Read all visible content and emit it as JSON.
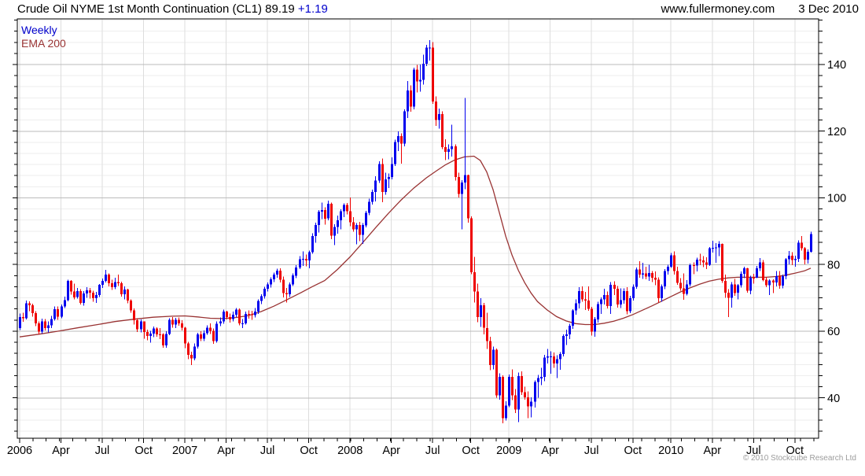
{
  "header": {
    "title": "Crude Oil NYME 1st Month Continuation (CL1) 89.19",
    "change": "+1.19",
    "website": "www.fullermoney.com",
    "date": "3 Dec 2010"
  },
  "legend": {
    "timeframe": "Weekly",
    "overlay": "EMA 200"
  },
  "footer": {
    "copyright": "© 2010 Stockcube Research Ltd"
  },
  "colors": {
    "up": "#0000EE",
    "down": "#EE0000",
    "ema": "#993333",
    "blue_text": "#0000CC",
    "grid_major": "#BBBBBB",
    "grid_minor": "#EEEEEE",
    "grid_vertical": "#DDDDDD",
    "axis": "#000000",
    "watermark": "#9C9C9C"
  },
  "chart_data": {
    "type": "candlestick",
    "title": "Crude Oil NYME 1st Month Continuation (CL1)",
    "last": 89.19,
    "change": 1.19,
    "timeframe": "Weekly",
    "overlay": "EMA 200",
    "grid": true,
    "legend_position": "top-left",
    "ylim": [
      28,
      153
    ],
    "y_major_ticks": [
      40,
      60,
      80,
      100,
      120,
      140
    ],
    "y_minor_step": 3.3333,
    "x_range_weeks": 250,
    "x_ticks": [
      {
        "i": 0,
        "label": "2006"
      },
      {
        "i": 13,
        "label": "Apr"
      },
      {
        "i": 26,
        "label": "Jul"
      },
      {
        "i": 39,
        "label": "Oct"
      },
      {
        "i": 52,
        "label": "2007"
      },
      {
        "i": 65,
        "label": "Apr"
      },
      {
        "i": 78,
        "label": "Jul"
      },
      {
        "i": 91,
        "label": "Oct"
      },
      {
        "i": 104,
        "label": "2008"
      },
      {
        "i": 117,
        "label": "Apr"
      },
      {
        "i": 130,
        "label": "Jul"
      },
      {
        "i": 142,
        "label": "Oct"
      },
      {
        "i": 154,
        "label": "2009"
      },
      {
        "i": 167,
        "label": "Apr"
      },
      {
        "i": 180,
        "label": "Jul"
      },
      {
        "i": 193,
        "label": "Oct"
      },
      {
        "i": 205,
        "label": "2010"
      },
      {
        "i": 218,
        "label": "Apr"
      },
      {
        "i": 231,
        "label": "Jul"
      },
      {
        "i": 244,
        "label": "Oct"
      }
    ],
    "first_open": 61.0,
    "weeks": [
      [
        65.3,
        60.4,
        64.2
      ],
      [
        65.6,
        62.8,
        63.9
      ],
      [
        69.2,
        63.5,
        68.4
      ],
      [
        69.0,
        66.0,
        67.8
      ],
      [
        68.3,
        64.4,
        65.4
      ],
      [
        66.0,
        61.5,
        62.4
      ],
      [
        63.0,
        59.1,
        59.9
      ],
      [
        63.8,
        59.3,
        62.9
      ],
      [
        63.6,
        60.2,
        61.0
      ],
      [
        63.0,
        59.6,
        61.8
      ],
      [
        64.6,
        61.0,
        63.7
      ],
      [
        67.4,
        63.2,
        66.6
      ],
      [
        67.4,
        63.4,
        64.3
      ],
      [
        68.0,
        63.9,
        67.4
      ],
      [
        70.4,
        67.0,
        69.3
      ],
      [
        75.4,
        69.0,
        75.1
      ],
      [
        75.3,
        71.0,
        71.9
      ],
      [
        74.3,
        69.5,
        70.2
      ],
      [
        73.0,
        69.8,
        72.0
      ],
      [
        72.6,
        68.0,
        68.5
      ],
      [
        72.0,
        67.6,
        71.3
      ],
      [
        73.2,
        70.0,
        72.3
      ],
      [
        73.0,
        69.8,
        71.6
      ],
      [
        72.2,
        68.9,
        69.9
      ],
      [
        71.8,
        68.5,
        70.9
      ],
      [
        74.2,
        70.2,
        73.9
      ],
      [
        75.8,
        73.0,
        75.1
      ],
      [
        78.4,
        74.6,
        77.0
      ],
      [
        77.3,
        73.5,
        74.4
      ],
      [
        75.4,
        72.4,
        73.2
      ],
      [
        76.0,
        72.6,
        74.8
      ],
      [
        77.0,
        73.6,
        74.4
      ],
      [
        74.9,
        70.4,
        71.1
      ],
      [
        73.4,
        69.6,
        72.5
      ],
      [
        72.8,
        68.4,
        69.2
      ],
      [
        69.6,
        65.5,
        66.2
      ],
      [
        66.8,
        62.0,
        63.3
      ],
      [
        63.9,
        59.8,
        60.6
      ],
      [
        63.5,
        59.7,
        62.9
      ],
      [
        63.0,
        57.8,
        59.8
      ],
      [
        60.5,
        57.3,
        58.6
      ],
      [
        60.1,
        56.6,
        59.3
      ],
      [
        61.4,
        58.2,
        60.8
      ],
      [
        61.2,
        58.3,
        59.1
      ],
      [
        61.0,
        57.7,
        59.0
      ],
      [
        59.4,
        55.0,
        55.8
      ],
      [
        60.0,
        55.1,
        59.2
      ],
      [
        63.9,
        58.8,
        63.4
      ],
      [
        64.2,
        61.1,
        62.0
      ],
      [
        64.0,
        61.0,
        63.4
      ],
      [
        64.1,
        61.6,
        62.4
      ],
      [
        63.3,
        60.2,
        61.1
      ],
      [
        61.3,
        54.9,
        56.3
      ],
      [
        56.8,
        51.6,
        52.9
      ],
      [
        53.9,
        49.9,
        51.9
      ],
      [
        56.3,
        51.3,
        55.4
      ],
      [
        59.5,
        54.8,
        59.0
      ],
      [
        60.0,
        57.0,
        57.8
      ],
      [
        60.2,
        57.1,
        59.4
      ],
      [
        61.8,
        58.9,
        61.1
      ],
      [
        62.4,
        59.2,
        60.1
      ],
      [
        60.8,
        56.2,
        57.1
      ],
      [
        63.0,
        56.6,
        62.3
      ],
      [
        64.1,
        61.5,
        62.9
      ],
      [
        66.5,
        62.3,
        65.9
      ],
      [
        66.1,
        63.5,
        64.3
      ],
      [
        65.3,
        62.6,
        63.6
      ],
      [
        65.9,
        62.9,
        65.0
      ],
      [
        67.0,
        64.2,
        66.5
      ],
      [
        66.8,
        61.8,
        62.4
      ],
      [
        63.6,
        60.9,
        62.4
      ],
      [
        65.9,
        62.0,
        65.2
      ],
      [
        66.3,
        63.8,
        65.1
      ],
      [
        66.1,
        63.4,
        64.8
      ],
      [
        67.0,
        64.1,
        65.9
      ],
      [
        69.6,
        65.2,
        69.1
      ],
      [
        71.1,
        68.2,
        70.5
      ],
      [
        73.3,
        69.8,
        72.8
      ],
      [
        74.6,
        71.9,
        74.0
      ],
      [
        76.2,
        73.1,
        75.6
      ],
      [
        77.6,
        74.8,
        77.0
      ],
      [
        78.8,
        76.0,
        78.2
      ],
      [
        78.9,
        74.6,
        75.5
      ],
      [
        76.4,
        70.1,
        71.5
      ],
      [
        73.0,
        68.6,
        71.1
      ],
      [
        74.6,
        70.3,
        74.0
      ],
      [
        77.4,
        73.6,
        76.7
      ],
      [
        79.8,
        75.9,
        79.1
      ],
      [
        82.5,
        78.7,
        81.6
      ],
      [
        83.9,
        79.6,
        81.7
      ],
      [
        83.0,
        79.5,
        81.2
      ],
      [
        84.2,
        78.9,
        83.7
      ],
      [
        89.4,
        83.2,
        88.6
      ],
      [
        92.6,
        86.6,
        91.9
      ],
      [
        96.4,
        89.6,
        95.9
      ],
      [
        98.6,
        93.6,
        96.3
      ],
      [
        97.2,
        92.0,
        93.8
      ],
      [
        99.2,
        93.3,
        98.2
      ],
      [
        98.6,
        87.6,
        88.7
      ],
      [
        92.1,
        85.8,
        91.3
      ],
      [
        94.7,
        89.3,
        93.3
      ],
      [
        96.6,
        90.6,
        96.0
      ],
      [
        98.3,
        94.2,
        97.9
      ],
      [
        98.5,
        95.1,
        96.0
      ],
      [
        100.1,
        91.5,
        92.7
      ],
      [
        94.2,
        89.8,
        90.6
      ],
      [
        92.5,
        86.1,
        91.8
      ],
      [
        92.8,
        87.0,
        88.9
      ],
      [
        92.4,
        86.2,
        91.8
      ],
      [
        96.1,
        91.1,
        95.5
      ],
      [
        99.8,
        94.8,
        98.8
      ],
      [
        102.5,
        98.0,
        101.8
      ],
      [
        106.5,
        99.0,
        105.2
      ],
      [
        111.0,
        104.5,
        110.2
      ],
      [
        111.8,
        98.7,
        101.8
      ],
      [
        107.6,
        100.9,
        105.6
      ],
      [
        107.3,
        103.0,
        106.2
      ],
      [
        112.2,
        105.6,
        110.1
      ],
      [
        117.5,
        109.6,
        116.7
      ],
      [
        119.9,
        114.0,
        118.5
      ],
      [
        119.4,
        110.3,
        116.3
      ],
      [
        126.6,
        115.5,
        126.0
      ],
      [
        135.1,
        124.0,
        132.2
      ],
      [
        133.7,
        125.9,
        127.4
      ],
      [
        139.1,
        126.6,
        138.5
      ],
      [
        139.9,
        131.6,
        134.9
      ],
      [
        140.0,
        131.9,
        135.4
      ],
      [
        143.0,
        134.0,
        140.2
      ],
      [
        145.9,
        139.5,
        145.1
      ],
      [
        147.3,
        141.2,
        145.1
      ],
      [
        146.7,
        128.2,
        128.9
      ],
      [
        130.5,
        121.6,
        123.3
      ],
      [
        126.8,
        120.8,
        125.1
      ],
      [
        126.0,
        114.6,
        115.2
      ],
      [
        117.6,
        111.3,
        113.8
      ],
      [
        116.1,
        111.6,
        114.6
      ],
      [
        122.0,
        112.4,
        115.5
      ],
      [
        116.0,
        105.2,
        106.2
      ],
      [
        107.5,
        100.1,
        101.2
      ],
      [
        105.3,
        90.5,
        104.6
      ],
      [
        130.0,
        102.6,
        106.9
      ],
      [
        107.0,
        92.5,
        93.9
      ],
      [
        94.5,
        77.1,
        77.7
      ],
      [
        82.3,
        68.6,
        71.9
      ],
      [
        74.3,
        62.7,
        64.2
      ],
      [
        69.9,
        61.3,
        67.8
      ],
      [
        68.5,
        59.1,
        61.0
      ],
      [
        65.6,
        54.7,
        57.0
      ],
      [
        58.3,
        48.3,
        49.9
      ],
      [
        55.4,
        48.6,
        54.4
      ],
      [
        54.8,
        40.0,
        40.8
      ],
      [
        47.4,
        39.5,
        46.3
      ],
      [
        46.8,
        32.4,
        33.9
      ],
      [
        39.0,
        33.2,
        37.7
      ],
      [
        47.0,
        37.2,
        46.3
      ],
      [
        48.6,
        39.4,
        40.8
      ],
      [
        42.6,
        35.4,
        36.5
      ],
      [
        47.6,
        32.7,
        46.5
      ],
      [
        48.0,
        40.9,
        41.7
      ],
      [
        43.4,
        39.4,
        40.2
      ],
      [
        41.9,
        33.9,
        37.5
      ],
      [
        40.2,
        34.1,
        38.9
      ],
      [
        45.3,
        37.1,
        44.8
      ],
      [
        46.9,
        40.0,
        45.9
      ],
      [
        49.0,
        43.8,
        46.3
      ],
      [
        52.9,
        45.0,
        52.1
      ],
      [
        54.7,
        50.3,
        52.4
      ],
      [
        54.0,
        47.2,
        52.5
      ],
      [
        53.6,
        49.0,
        50.3
      ],
      [
        52.8,
        45.9,
        51.6
      ],
      [
        53.8,
        48.5,
        53.2
      ],
      [
        59.0,
        52.4,
        58.6
      ],
      [
        60.5,
        55.9,
        59.0
      ],
      [
        62.3,
        57.6,
        61.7
      ],
      [
        66.6,
        60.7,
        66.3
      ],
      [
        69.6,
        64.9,
        68.4
      ],
      [
        73.2,
        66.9,
        72.0
      ],
      [
        73.4,
        68.8,
        69.6
      ],
      [
        71.8,
        66.4,
        69.2
      ],
      [
        73.4,
        66.1,
        66.7
      ],
      [
        67.3,
        58.7,
        59.9
      ],
      [
        64.2,
        58.3,
        63.6
      ],
      [
        68.9,
        62.6,
        68.1
      ],
      [
        70.2,
        65.2,
        69.5
      ],
      [
        72.8,
        68.0,
        70.9
      ],
      [
        71.9,
        66.8,
        67.5
      ],
      [
        74.7,
        65.2,
        73.9
      ],
      [
        75.0,
        70.9,
        72.7
      ],
      [
        73.6,
        67.1,
        68.0
      ],
      [
        72.9,
        66.9,
        69.3
      ],
      [
        72.9,
        68.3,
        72.0
      ],
      [
        73.2,
        65.1,
        66.0
      ],
      [
        70.6,
        65.4,
        69.9
      ],
      [
        74.0,
        69.2,
        73.3
      ],
      [
        79.1,
        72.7,
        78.5
      ],
      [
        81.0,
        76.0,
        77.0
      ],
      [
        80.5,
        75.7,
        77.4
      ],
      [
        79.3,
        75.6,
        76.4
      ],
      [
        80.0,
        75.1,
        77.5
      ],
      [
        78.1,
        74.8,
        76.0
      ],
      [
        77.9,
        73.8,
        75.5
      ],
      [
        76.2,
        68.6,
        69.9
      ],
      [
        74.0,
        68.9,
        73.4
      ],
      [
        78.6,
        72.6,
        78.0
      ],
      [
        80.0,
        77.0,
        79.4
      ],
      [
        83.5,
        79.0,
        82.8
      ],
      [
        84.0,
        77.0,
        78.0
      ],
      [
        79.3,
        73.9,
        74.5
      ],
      [
        75.9,
        72.2,
        72.9
      ],
      [
        77.3,
        69.5,
        71.2
      ],
      [
        75.3,
        70.8,
        74.1
      ],
      [
        80.3,
        73.4,
        79.8
      ],
      [
        80.6,
        77.1,
        79.7
      ],
      [
        82.1,
        78.0,
        81.5
      ],
      [
        83.2,
        79.8,
        81.2
      ],
      [
        82.5,
        79.2,
        80.7
      ],
      [
        82.2,
        78.6,
        80.0
      ],
      [
        85.3,
        79.6,
        84.9
      ],
      [
        87.1,
        83.6,
        85.0
      ],
      [
        86.4,
        80.5,
        85.1
      ],
      [
        87.0,
        82.5,
        86.2
      ],
      [
        86.3,
        74.5,
        75.1
      ],
      [
        77.0,
        70.0,
        71.6
      ],
      [
        72.6,
        64.2,
        70.0
      ],
      [
        74.8,
        67.1,
        74.0
      ],
      [
        75.7,
        70.6,
        71.5
      ],
      [
        74.2,
        69.5,
        73.8
      ],
      [
        77.9,
        73.1,
        77.2
      ],
      [
        79.4,
        75.9,
        78.9
      ],
      [
        79.0,
        71.6,
        72.1
      ],
      [
        76.6,
        71.1,
        76.1
      ],
      [
        77.2,
        74.3,
        76.0
      ],
      [
        79.6,
        75.9,
        78.9
      ],
      [
        82.0,
        78.0,
        80.7
      ],
      [
        81.3,
        75.0,
        75.4
      ],
      [
        76.3,
        73.2,
        73.8
      ],
      [
        75.6,
        70.8,
        75.2
      ],
      [
        75.6,
        71.5,
        74.6
      ],
      [
        78.0,
        73.4,
        76.5
      ],
      [
        78.1,
        72.8,
        73.7
      ],
      [
        77.0,
        72.9,
        76.5
      ],
      [
        82.0,
        75.6,
        81.6
      ],
      [
        84.1,
        80.1,
        82.7
      ],
      [
        83.7,
        79.8,
        81.3
      ],
      [
        82.6,
        79.4,
        81.7
      ],
      [
        87.2,
        80.8,
        86.5
      ],
      [
        88.6,
        84.2,
        84.9
      ],
      [
        85.3,
        80.1,
        81.5
      ],
      [
        84.5,
        80.3,
        83.8
      ],
      [
        89.8,
        83.6,
        89.2
      ]
    ],
    "ema_points": [
      [
        0,
        58.3
      ],
      [
        6,
        59.1
      ],
      [
        12,
        60.0
      ],
      [
        18,
        61.0
      ],
      [
        24,
        61.9
      ],
      [
        30,
        62.9
      ],
      [
        36,
        63.6
      ],
      [
        42,
        64.2
      ],
      [
        48,
        64.5
      ],
      [
        52,
        64.6
      ],
      [
        56,
        64.3
      ],
      [
        60,
        63.9
      ],
      [
        64,
        63.8
      ],
      [
        68,
        64.1
      ],
      [
        72,
        64.7
      ],
      [
        76,
        65.9
      ],
      [
        80,
        67.5
      ],
      [
        84,
        69.4
      ],
      [
        88,
        71.3
      ],
      [
        92,
        73.3
      ],
      [
        96,
        75.2
      ],
      [
        100,
        78.5
      ],
      [
        104,
        82.3
      ],
      [
        108,
        86.6
      ],
      [
        112,
        91.0
      ],
      [
        116,
        95.3
      ],
      [
        120,
        99.3
      ],
      [
        124,
        102.9
      ],
      [
        128,
        106.0
      ],
      [
        131,
        108.0
      ],
      [
        134,
        109.9
      ],
      [
        137,
        111.4
      ],
      [
        140,
        112.3
      ],
      [
        143,
        112.5
      ],
      [
        145,
        111.2
      ],
      [
        147,
        107.8
      ],
      [
        149,
        102.5
      ],
      [
        151,
        95.5
      ],
      [
        153,
        88.5
      ],
      [
        155,
        82.8
      ],
      [
        157,
        78.2
      ],
      [
        159,
        74.5
      ],
      [
        161,
        71.4
      ],
      [
        163,
        68.9
      ],
      [
        166,
        66.4
      ],
      [
        169,
        64.4
      ],
      [
        172,
        63.1
      ],
      [
        175,
        62.3
      ],
      [
        178,
        62.0
      ],
      [
        181,
        62.0
      ],
      [
        184,
        62.4
      ],
      [
        187,
        63.0
      ],
      [
        190,
        63.9
      ],
      [
        193,
        65.0
      ],
      [
        196,
        66.3
      ],
      [
        199,
        67.6
      ],
      [
        202,
        69.0
      ],
      [
        205,
        70.4
      ],
      [
        208,
        71.8
      ],
      [
        211,
        73.0
      ],
      [
        214,
        74.1
      ],
      [
        217,
        75.0
      ],
      [
        220,
        75.6
      ],
      [
        223,
        76.0
      ],
      [
        226,
        76.2
      ],
      [
        229,
        76.2
      ],
      [
        232,
        76.2
      ],
      [
        235,
        76.2
      ],
      [
        238,
        76.4
      ],
      [
        241,
        76.8
      ],
      [
        244,
        77.4
      ],
      [
        247,
        78.1
      ],
      [
        249,
        78.9
      ]
    ]
  }
}
